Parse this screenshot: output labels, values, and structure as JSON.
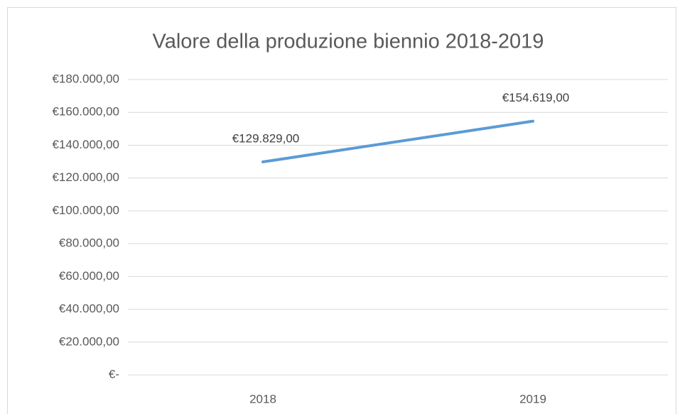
{
  "chart_data": {
    "type": "line",
    "title": "Valore della produzione biennio 2018-2019",
    "categories": [
      "2018",
      "2019"
    ],
    "series": [
      {
        "name": "Valore della produzione",
        "color": "#5b9bd5",
        "values": [
          129829,
          154619
        ],
        "value_labels": [
          "€129.829,00",
          "€154.619,00"
        ]
      }
    ],
    "ylim": [
      0,
      180000
    ],
    "yticks": [
      {
        "value": 0,
        "label": "€-"
      },
      {
        "value": 20000,
        "label": "€20.000,00"
      },
      {
        "value": 40000,
        "label": "€40.000,00"
      },
      {
        "value": 60000,
        "label": "€60.000,00"
      },
      {
        "value": 80000,
        "label": "€80.000,00"
      },
      {
        "value": 100000,
        "label": "€100.000,00"
      },
      {
        "value": 120000,
        "label": "€120.000,00"
      },
      {
        "value": 140000,
        "label": "€140.000,00"
      },
      {
        "value": 160000,
        "label": "€160.000,00"
      },
      {
        "value": 180000,
        "label": "€180.000,00"
      }
    ],
    "grid": true
  }
}
